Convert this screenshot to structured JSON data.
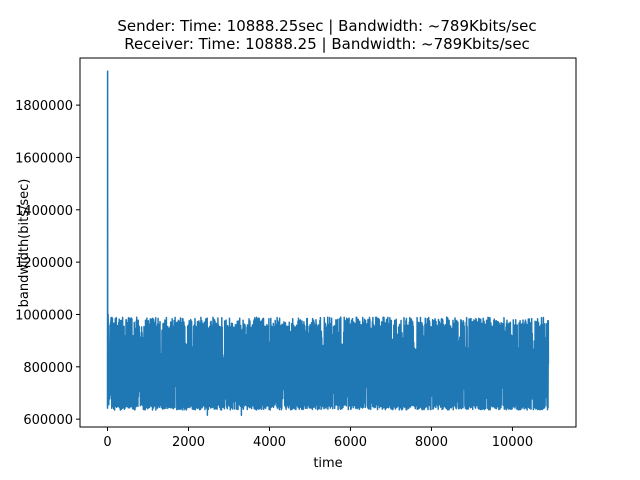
{
  "chart_data": {
    "type": "line",
    "title": [
      "Sender: Time: 10888.25sec | Bandwidth: ~789Kbits/sec",
      " Receiver: Time: 10888.25 | Bandwidth: ~789Kbits/sec"
    ],
    "xlabel": "time",
    "ylabel": "bandwidth(bits/sec)",
    "xlim": [
      -680,
      11570
    ],
    "ylim": [
      570000,
      1980000
    ],
    "xticks": [
      0,
      2000,
      4000,
      6000,
      8000,
      10000
    ],
    "xtick_labels": [
      "0",
      "2000",
      "4000",
      "6000",
      "8000",
      "10000"
    ],
    "yticks": [
      600000,
      800000,
      1000000,
      1200000,
      1400000,
      1600000,
      1800000
    ],
    "ytick_labels": [
      "600000",
      "800000",
      "1000000",
      "1200000",
      "1400000",
      "1600000",
      "1800000"
    ],
    "grid": false,
    "legend": "none",
    "series": [
      {
        "color": "#1f77b4",
        "x_start": 0,
        "x_end": 10888.25,
        "spike": {
          "x": 0,
          "y": 1930000
        },
        "typical_low": 640000,
        "typical_high": 985000,
        "mean": 789000,
        "min": 615000,
        "max_after_spike": 1000000
      }
    ]
  }
}
